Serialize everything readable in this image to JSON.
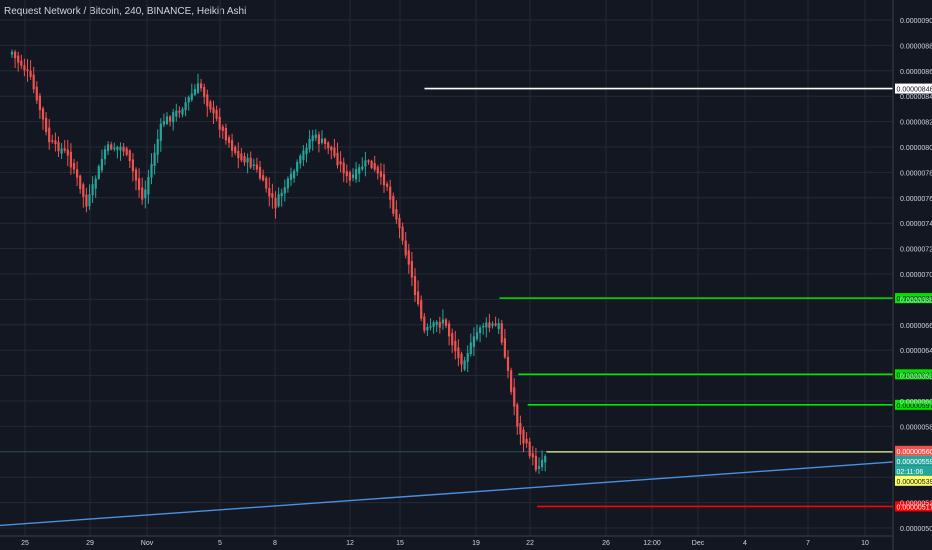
{
  "header": {
    "title": "Request Network / Bitcoin, 240, BINANCE, Heikin Ashi"
  },
  "colors": {
    "background": "#131722",
    "grid": "#242a36",
    "bull": "#26a69a",
    "bear": "#ef5350",
    "axis_text": "#d1d4dc"
  },
  "chart_data": {
    "type": "candlestick",
    "style": "Heikin Ashi",
    "symbol": "Request Network / Bitcoin",
    "interval": "240",
    "exchange": "BINANCE",
    "ylim": [
      5e-06,
      9e-06
    ],
    "y_ticks": [
      "0.00000900",
      "0.00000880",
      "0.00000860",
      "0.00000840",
      "0.00000820",
      "0.00000800",
      "0.00000780",
      "0.00000760",
      "0.00000740",
      "0.00000720",
      "0.00000700",
      "0.00000680",
      "0.00000660",
      "0.00000640",
      "0.00000620",
      "0.00000600",
      "0.00000580",
      "0.00000560",
      "0.00000540",
      "0.00000520",
      "0.00000500"
    ],
    "x_ticks": [
      "25",
      "29",
      "Nov",
      "5",
      "8",
      "12",
      "15",
      "19",
      "22",
      "26",
      "12:00",
      "Dec",
      "4",
      "7",
      "10"
    ],
    "price_anchors": [
      {
        "x": "Oct 24",
        "y": 8.75e-06
      },
      {
        "x": "Oct 25",
        "y": 8.55e-06
      },
      {
        "x": "Oct 26",
        "y": 8.05e-06
      },
      {
        "x": "Oct 27",
        "y": 7.95e-06
      },
      {
        "x": "Oct 28",
        "y": 7.55e-06
      },
      {
        "x": "Oct 29",
        "y": 8e-06
      },
      {
        "x": "Oct 30",
        "y": 8e-06
      },
      {
        "x": "Oct 31",
        "y": 7.6e-06
      },
      {
        "x": "Nov 1",
        "y": 8.2e-06
      },
      {
        "x": "Nov 2",
        "y": 8.3e-06
      },
      {
        "x": "Nov 3",
        "y": 8.5e-06
      },
      {
        "x": "Nov 4",
        "y": 8.2e-06
      },
      {
        "x": "Nov 5",
        "y": 7.95e-06
      },
      {
        "x": "Nov 6",
        "y": 7.85e-06
      },
      {
        "x": "Nov 7",
        "y": 7.55e-06
      },
      {
        "x": "Nov 8",
        "y": 7.8e-06
      },
      {
        "x": "Nov 9",
        "y": 8.1e-06
      },
      {
        "x": "Nov 10",
        "y": 8e-06
      },
      {
        "x": "Nov 11",
        "y": 7.75e-06
      },
      {
        "x": "Nov 12",
        "y": 7.9e-06
      },
      {
        "x": "Nov 13",
        "y": 7.7e-06
      },
      {
        "x": "Nov 14",
        "y": 7.2e-06
      },
      {
        "x": "Nov 15",
        "y": 6.55e-06
      },
      {
        "x": "Nov 16",
        "y": 6.65e-06
      },
      {
        "x": "Nov 17",
        "y": 6.3e-06
      },
      {
        "x": "Nov 18",
        "y": 6.6e-06
      },
      {
        "x": "Nov 19",
        "y": 6.6e-06
      },
      {
        "x": "Nov 20",
        "y": 5.8e-06
      },
      {
        "x": "Nov 21",
        "y": 5.48e-06
      },
      {
        "x": "Nov 21.5",
        "y": 5.59e-06
      }
    ],
    "horizontal_lines": [
      {
        "label": "0.00000846",
        "value": 8.46e-06,
        "color": "#ffffff",
        "text_color": "#131722",
        "start": "Nov 15"
      },
      {
        "label": "0.00000681",
        "value": 6.81e-06,
        "color": "#00e600",
        "text_color": "#131722",
        "start": "Nov 19"
      },
      {
        "label": "0.00000621",
        "value": 6.21e-06,
        "color": "#00e600",
        "text_color": "#131722",
        "start": "Nov 20"
      },
      {
        "label": "0.00000597",
        "value": 5.97e-06,
        "color": "#00e600",
        "text_color": "#131722",
        "start": "Nov 20.5"
      },
      {
        "label": "0.00000560",
        "value": 5.6e-06,
        "color": "#d4d47a",
        "text_color": "#131722",
        "start": "Nov 21.5"
      },
      {
        "label": "0.00000517",
        "value": 5.17e-06,
        "color": "#ff0000",
        "text_color": "#ffffff",
        "start": "Nov 21"
      }
    ],
    "price_badges": [
      {
        "label": "0.00000560",
        "value": 5.6e-06,
        "bg": "#ef5350",
        "fg": "#ffffff"
      },
      {
        "label": "0.00000559",
        "value": 5.59e-06,
        "bg": "#26a69a",
        "fg": "#ffffff"
      },
      {
        "label": "02:11:06",
        "value": 5.5e-06,
        "bg": "#26a69a",
        "fg": "#ffffff"
      },
      {
        "label": "0.00000539",
        "value": 5.39e-06,
        "bg": "#ffff66",
        "fg": "#131722"
      }
    ],
    "trendline": {
      "color": "#4a90e2",
      "points": [
        {
          "x": "Oct 24",
          "y": 5.02e-06
        },
        {
          "x": "Dec 11",
          "y": 5.52e-06
        }
      ]
    }
  }
}
